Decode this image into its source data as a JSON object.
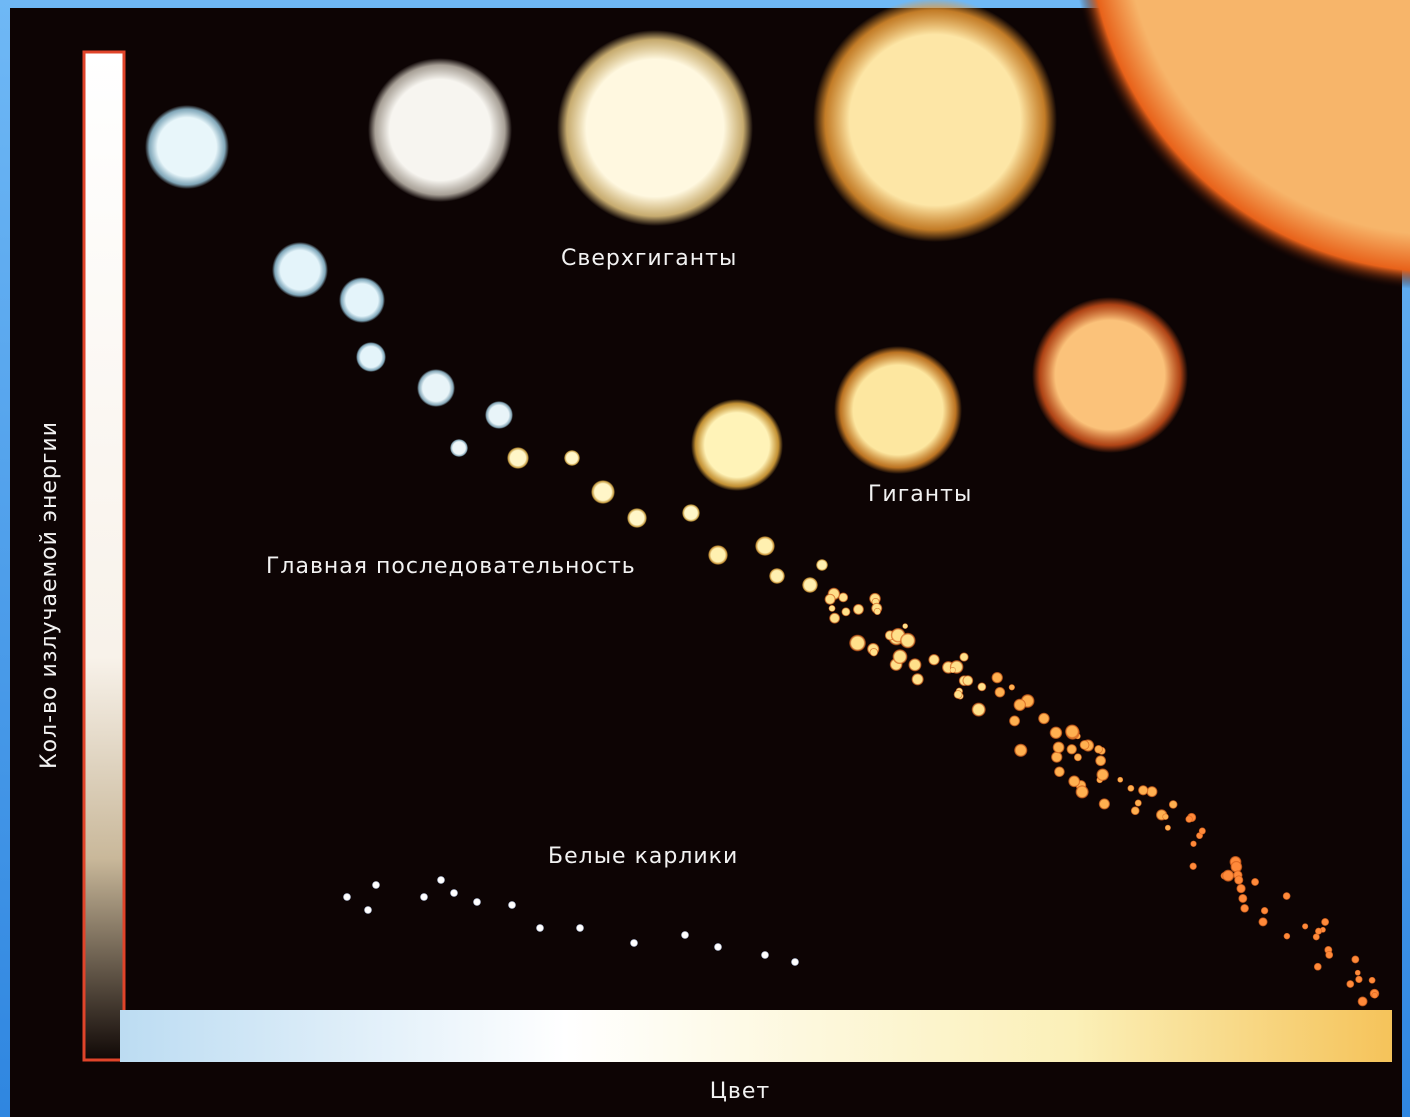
{
  "labels": {
    "supergiants": "Сверхгиганты",
    "giants": "Гиганты",
    "main_sequence": "Главная последовательность",
    "white_dwarfs": "Белые карлики"
  },
  "axes": {
    "x_label": "Цвет",
    "y_label": "Кол-во излучаемой энергии"
  }
}
